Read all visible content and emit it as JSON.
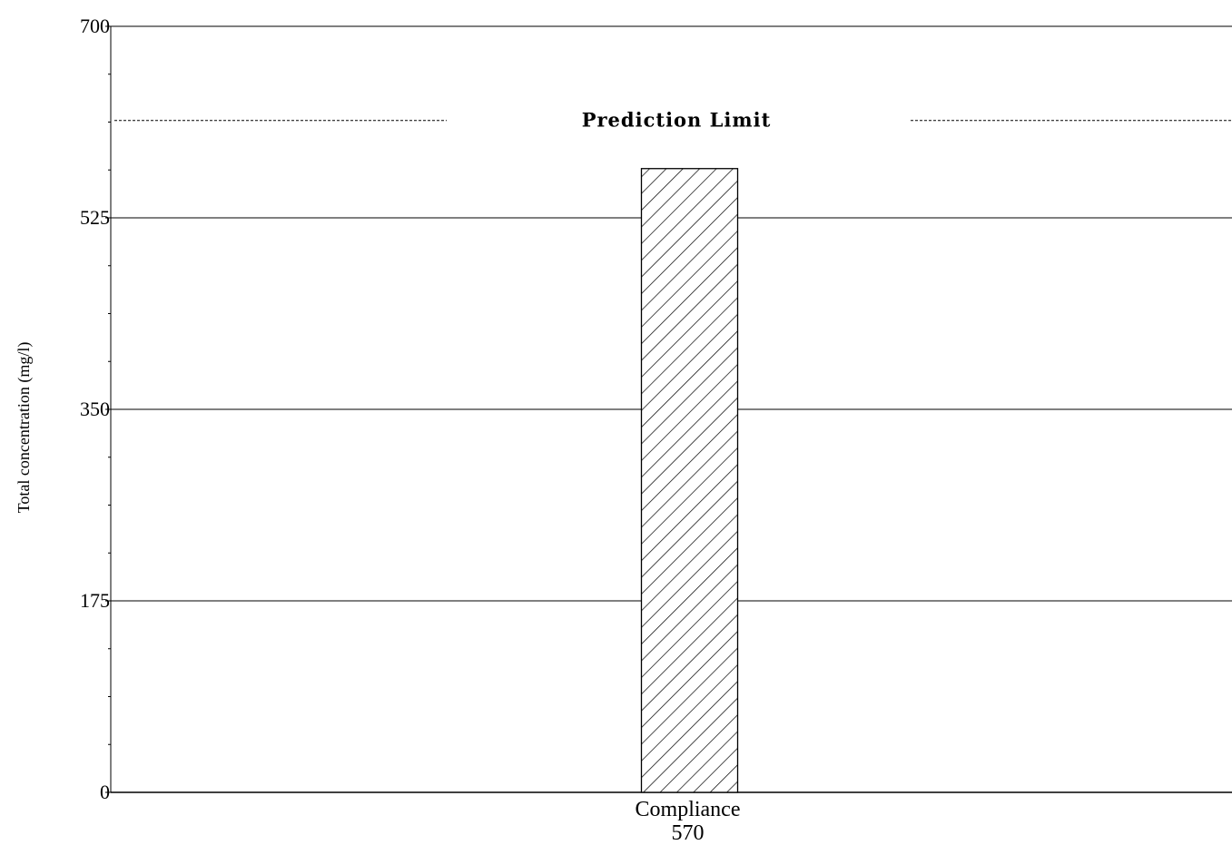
{
  "chart_data": {
    "type": "bar",
    "title": "",
    "xlabel": "",
    "ylabel": "Total concentration (mg/l)",
    "ylim": [
      0,
      700
    ],
    "yticks": [
      "0",
      "175",
      "350",
      "525",
      "700"
    ],
    "grid": true,
    "categories": [
      "Compliance"
    ],
    "values": [
      570
    ],
    "value_labels": [
      "570"
    ],
    "bar_fill": "diagonal-hatch",
    "reference_line": {
      "label": "Prediction Limit",
      "value": 614,
      "style": "dashed"
    },
    "colors": {
      "axis": "#000000",
      "grid": "#000000",
      "bar_stroke": "#000000",
      "hatch": "#000000",
      "background": "#ffffff"
    }
  }
}
